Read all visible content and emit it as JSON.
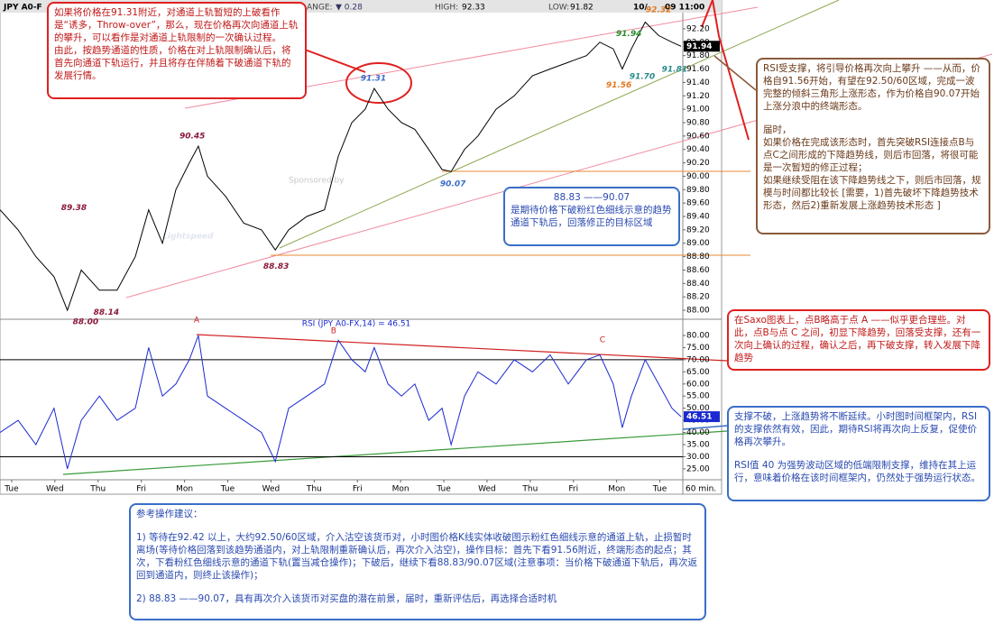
{
  "header": {
    "symbol": "JPY A0-F",
    "range_label": "ANGE:",
    "change": "▼ 0.28",
    "high_label": "HIGH:",
    "high": "92.33",
    "low_label": "LOW:",
    "low": "91.82",
    "date": "10/",
    "time": "09 11:00"
  },
  "watermark": {
    "sponsor": "Sponsored by",
    "brand": "Lightspeed"
  },
  "chart_data": [
    {
      "type": "line",
      "color": "#000000",
      "x": [
        -0.27,
        0.15,
        0.56,
        0.98,
        1.29,
        1.61,
        2.03,
        2.44,
        2.86,
        3.17,
        3.49,
        3.8,
        4.11,
        4.32,
        4.53,
        4.95,
        5.37,
        5.78,
        6.1,
        6.41,
        6.83,
        7.24,
        7.56,
        7.87,
        8.18,
        8.39,
        8.71,
        9.02,
        9.33,
        9.65,
        9.96,
        10.17,
        10.48,
        10.79,
        11.21,
        11.63,
        12.05,
        12.46,
        12.88,
        13.3,
        13.61,
        13.92,
        14.13,
        14.34,
        14.66,
        14.97,
        15.28,
        15.49
      ],
      "values": [
        89.5,
        89.2,
        88.8,
        88.5,
        88.0,
        88.6,
        88.3,
        88.3,
        88.8,
        89.5,
        89.0,
        89.8,
        90.2,
        90.45,
        90.0,
        89.7,
        89.3,
        89.2,
        88.9,
        89.2,
        89.4,
        89.5,
        90.3,
        90.8,
        91.0,
        91.31,
        91.0,
        90.8,
        90.7,
        90.4,
        90.1,
        90.07,
        90.4,
        90.6,
        91.0,
        91.2,
        91.5,
        91.6,
        91.7,
        91.8,
        92.0,
        91.9,
        91.6,
        91.9,
        92.3,
        92.1,
        92.0,
        91.94
      ],
      "xlim": [
        -0.27,
        15.53
      ],
      "ylim": [
        87.92,
        92.63
      ],
      "yticks": [
        {
          "value": 88,
          "label": "88.00"
        },
        {
          "value": 88.2,
          "label": "88.20"
        },
        {
          "value": 88.4,
          "label": "88.40"
        },
        {
          "value": 88.6,
          "label": "88.60"
        },
        {
          "value": 88.8,
          "label": "88.80"
        },
        {
          "value": 89,
          "label": "89.00"
        },
        {
          "value": 89.2,
          "label": "89.20"
        },
        {
          "value": 89.4,
          "label": "89.40"
        },
        {
          "value": 89.6,
          "label": "89.60"
        },
        {
          "value": 89.8,
          "label": "89.80"
        },
        {
          "value": 90,
          "label": "90.00"
        },
        {
          "value": 90.2,
          "label": "90.20"
        },
        {
          "value": 90.4,
          "label": "90.40"
        },
        {
          "value": 90.6,
          "label": "90.60"
        },
        {
          "value": 90.8,
          "label": "90.80"
        },
        {
          "value": 91,
          "label": "91.00"
        },
        {
          "value": 91.2,
          "label": "91.20"
        },
        {
          "value": 91.4,
          "label": "91.40"
        },
        {
          "value": 91.6,
          "label": "91.60"
        },
        {
          "value": 91.8,
          "label": "91.80"
        },
        {
          "value": 92,
          "label": "92.00"
        },
        {
          "value": 92.2,
          "label": "92.20"
        }
      ],
      "annotations": [
        {
          "x": 8.37,
          "value": 91.31,
          "color": "#3a6ec8"
        },
        {
          "x": 4.18,
          "value": 90.45,
          "color": "#8b1a3a"
        },
        {
          "x": 1.44,
          "value": 89.38,
          "color": "#8b1a3a"
        },
        {
          "x": 6.12,
          "value": 88.83,
          "color": "#8b1a3a"
        },
        {
          "x": 2.19,
          "value": 88.14,
          "color": "#8b1a3a"
        },
        {
          "x": 1.71,
          "value": 88,
          "label": "88.00",
          "color": "#8b1a3a"
        },
        {
          "x": 10.21,
          "value": 90.07,
          "color": "#3a6ec8"
        },
        {
          "x": 14.05,
          "value": 91.56,
          "color": "#e07820"
        },
        {
          "x": 14.59,
          "value": 91.7,
          "label": "91.70",
          "color": "#2a8a8a"
        },
        {
          "x": 15.34,
          "value": 91.81,
          "color": "#2a8a8a"
        },
        {
          "x": 14.28,
          "value": 91.94,
          "color": "#2a8a2a"
        },
        {
          "x": 14.97,
          "value": 92.32,
          "color": "#e07820"
        }
      ]
    },
    {
      "type": "line",
      "title": "RSI (JPY A0-FX,14) = 46.51",
      "color": "#1a2ad0",
      "x": [
        -0.27,
        0.15,
        0.56,
        0.98,
        1.29,
        1.61,
        2.03,
        2.44,
        2.86,
        3.17,
        3.49,
        3.8,
        4.11,
        4.32,
        4.53,
        4.95,
        5.37,
        5.78,
        6.1,
        6.41,
        6.83,
        7.24,
        7.56,
        7.87,
        8.18,
        8.39,
        8.71,
        9.02,
        9.33,
        9.65,
        9.96,
        10.17,
        10.48,
        10.79,
        11.21,
        11.63,
        12.05,
        12.46,
        12.88,
        13.3,
        13.61,
        13.92,
        14.13,
        14.34,
        14.66,
        14.97,
        15.28,
        15.49
      ],
      "values": [
        40,
        45,
        35,
        50,
        25,
        45,
        55,
        45,
        50,
        75,
        55,
        60,
        70,
        80,
        55,
        50,
        45,
        40,
        28,
        50,
        55,
        60,
        78,
        70,
        65,
        75,
        60,
        55,
        60,
        45,
        50,
        35,
        55,
        65,
        60,
        70,
        65,
        72,
        60,
        70,
        72,
        60,
        42,
        55,
        70,
        60,
        50,
        46.51
      ],
      "xlim": [
        -0.27,
        15.53
      ],
      "ylim": [
        20.5,
        85.2
      ],
      "yticks": [
        {
          "value": 25,
          "label": "25.00"
        },
        {
          "value": 30,
          "label": "30.00"
        },
        {
          "value": 35,
          "label": "35.00"
        },
        {
          "value": 40,
          "label": "40.00"
        },
        {
          "value": 45,
          "label": "45.00"
        },
        {
          "value": 50,
          "label": "50.00"
        },
        {
          "value": 55,
          "label": "55.00"
        },
        {
          "value": 60,
          "label": "60.00"
        },
        {
          "value": 65,
          "label": "65.00"
        },
        {
          "value": 70,
          "label": "70.00"
        },
        {
          "value": 75,
          "label": "75.00"
        },
        {
          "value": 80,
          "label": "80.00"
        }
      ],
      "ref_lines": [
        70,
        30
      ],
      "xticks": [
        {
          "value": 0,
          "label": "Tue"
        },
        {
          "value": 1,
          "label": "Wed"
        },
        {
          "value": 2,
          "label": "Thu"
        },
        {
          "value": 3,
          "label": "Fri"
        },
        {
          "value": 4,
          "label": "Mon"
        },
        {
          "value": 5,
          "label": "Tue"
        },
        {
          "value": 6,
          "label": "Wed"
        },
        {
          "value": 7,
          "label": "Thu"
        },
        {
          "value": 8,
          "label": "Fri"
        },
        {
          "value": 9,
          "label": "Mon"
        },
        {
          "value": 10,
          "label": "Tue"
        },
        {
          "value": 11,
          "label": "Wed"
        },
        {
          "value": 12,
          "label": "Thu"
        },
        {
          "value": 13,
          "label": "Fri"
        },
        {
          "value": 14,
          "label": "Mon"
        },
        {
          "value": 15,
          "label": "Tue"
        }
      ],
      "x_unit": "60 min.",
      "points": [
        {
          "x": 4.28,
          "label": "A"
        },
        {
          "x": 7.45,
          "label": "B"
        },
        {
          "x": 13.67,
          "label": "C"
        }
      ]
    }
  ],
  "notes": [
    {
      "paragraphs": [
        "如果将价格在91.31附近，对通道上轨暂短的上破看作是“诱多，Throw-over”，那么，现在价格再次向通道上轨的攀升，可以看作是对通道上轨限制的一次确认过程。",
        "由此，按趋势通道的性质，价格在对上轨限制确认后，将首先向通道下轨运行，并且将存在伴随着下破通道下轨的发展行情。"
      ]
    },
    {
      "paragraphs": [
        "88.83 ——90.07",
        "是期待价格下破粉红色细线示意的趋势通道下轨后，回落修正的目标区域"
      ]
    },
    {
      "paragraphs": [
        "RSI受支撑，将引导价格再次向上攀升 ——从而，价格自91.56开始，有望在92.50/60区域，完成一波完整的倾斜三角形上涨形态，作为价格自90.07开始上涨分浪中的终端形态。",
        "届时，",
        "如果价格在完成该形态时，首先突破RSI连接点B与点C之间形成的下降趋势线，则后市回落，将很可能是一次暂短的修正过程；",
        "如果继续受阻在该下降趋势线之下，则后市回落，规模与时间都比较长 [需要，1)首先破坏下降趋势技术形态，然后2)重新发展上涨趋势技术形态 ]"
      ]
    },
    {
      "paragraphs": [
        "在Saxo图表上，点B略高于点 A ——似乎更合理些。对此，点B与点 C 之间，初显下降趋势，回落受支撑，还有一次向上确认的过程，确认之后，再下破支撑，转入发展下降趋势"
      ]
    },
    {
      "paragraphs": [
        "支撑不破，上涨趋势将不断延续。小时图时间框架内，RSI的支撑依然有效，因此，期待RSI将再次向上反复，促使价格再次攀升。",
        "RSI值 40 为强势波动区域的低端限制支撑，维持在其上运行，意味着价格在该时间框架内，仍然处于强势运行状态。"
      ]
    },
    {
      "paragraphs": [
        "参考操作建议：",
        "1) 等待在92.42 以上，大约92.50/60区域，介入沽空该货币对，小时图价格K线实体收破图示粉红色细线示意的通道上轨，止损暂时离场(等待价格回落到该趋势通道内，对上轨限制重新确认后，再次介入沽空)，操作目标：首先下看91.56附近，终端形态的起点；其次，下看粉红色细线示意的通道下轨(置当减仓操作)；下破后，继续下看88.83/90.07区域(注意事项：当价格下破通道下轨后，再次返回到通道内，则终止该操作)；",
        "2) 88.83 ——90.07，具有再次介入该货币对买盘的潜在前景，届时，重新评估后，再选择合适时机"
      ]
    }
  ]
}
